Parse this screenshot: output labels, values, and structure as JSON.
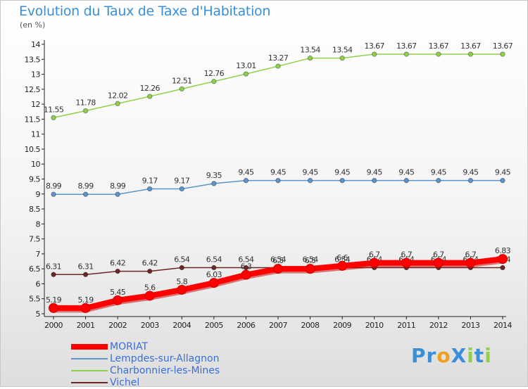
{
  "header": {
    "title": "Evolution du Taux de Taxe d'Habitation",
    "subtitle": "(en %)"
  },
  "chart_data": {
    "type": "line",
    "x": [
      "2000",
      "2001",
      "2002",
      "2003",
      "2004",
      "2005",
      "2006",
      "2007",
      "2008",
      "2009",
      "2010",
      "2011",
      "2012",
      "2013",
      "2014"
    ],
    "ylim": [
      5,
      14
    ],
    "y_ticks": [
      "5",
      "5.5",
      "6",
      "6.5",
      "7",
      "7.5",
      "8",
      "8.5",
      "9",
      "9.5",
      "10",
      "10.5",
      "11",
      "11.5",
      "12",
      "12.5",
      "13",
      "13.5",
      "14"
    ],
    "grid": false,
    "legend_position": "bottom-left",
    "series": [
      {
        "name": "Charbonnier-les-Mines",
        "color": "#8fd04a",
        "values": [
          11.55,
          11.78,
          12.02,
          12.26,
          12.51,
          12.76,
          13.01,
          13.27,
          13.54,
          13.54,
          13.67,
          13.67,
          13.67,
          13.67,
          13.67
        ],
        "labels": [
          "11.55",
          "11.78",
          "12.02",
          "12.26",
          "12.51",
          "12.76",
          "13.01",
          "13.27",
          "13.54",
          "13.54",
          "13.67",
          "13.67",
          "13.67",
          "13.67",
          "13.67"
        ]
      },
      {
        "name": "Lempdes-sur-Allagnon",
        "color": "#5b95cc",
        "values": [
          8.99,
          8.99,
          8.99,
          9.17,
          9.17,
          9.35,
          9.45,
          9.45,
          9.45,
          9.45,
          9.45,
          9.45,
          9.45,
          9.45,
          9.45
        ],
        "labels": [
          "8.99",
          "8.99",
          "8.99",
          "9.17",
          "9.17",
          "9.35",
          "9.45",
          "9.45",
          "9.45",
          "9.45",
          "9.45",
          "9.45",
          "9.45",
          "9.45",
          "9.45"
        ]
      },
      {
        "name": "Vichel",
        "color": "#6b2626",
        "values": [
          6.31,
          6.31,
          6.42,
          6.42,
          6.54,
          6.54,
          6.54,
          6.54,
          6.54,
          6.54,
          6.54,
          6.54,
          6.54,
          6.54,
          6.54
        ],
        "labels": [
          "6.31",
          "6.31",
          "6.42",
          "6.42",
          "6.54",
          "6.54",
          "6.54",
          "6.54",
          "6.54",
          "6.54",
          "6.54",
          "6.54",
          "6.54",
          "6.54",
          "6.54"
        ]
      },
      {
        "name": "MORIAT",
        "color": "#ff0000",
        "values": [
          5.19,
          5.19,
          5.45,
          5.6,
          5.8,
          6.03,
          6.3,
          6.5,
          6.5,
          6.6,
          6.7,
          6.7,
          6.7,
          6.7,
          6.83
        ],
        "labels": [
          "5.19",
          "5.19",
          "5.45",
          "5.6",
          "5.8",
          "6.03",
          "6.3",
          "6.5",
          "6.5",
          "6.6",
          "6.7",
          "6.7",
          "6.7",
          "6.7",
          "6.83"
        ]
      }
    ]
  },
  "legend": {
    "items": [
      {
        "label": "MORIAT",
        "color": "#ff0000"
      },
      {
        "label": "Lempdes-sur-Allagnon",
        "color": "#5b95cc"
      },
      {
        "label": "Charbonnier-les-Mines",
        "color": "#8fd04a"
      },
      {
        "label": "Vichel",
        "color": "#6b2626"
      }
    ]
  },
  "logo": {
    "text": "ProXiti",
    "letters": [
      {
        "ch": "P",
        "color": "#3a8fd8"
      },
      {
        "ch": "r",
        "color": "#3a8fd8"
      },
      {
        "ch": "o",
        "color": "#f0a020"
      },
      {
        "ch": "X",
        "color": "#3a8fd8"
      },
      {
        "ch": "i",
        "color": "#8fd04a"
      },
      {
        "ch": "t",
        "color": "#3a8fd8"
      },
      {
        "ch": "i",
        "color": "#8fd04a"
      }
    ]
  }
}
